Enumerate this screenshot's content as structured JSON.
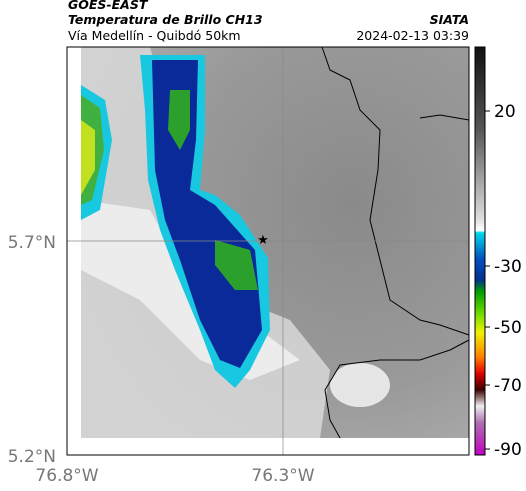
{
  "header": {
    "title": "GOES-EAST",
    "subtitle": "Temperatura de Brillo CH13",
    "brand": "SIATA",
    "route": "Vía Medellín - Quibdó 50km",
    "timestamp": "2024-02-13 03:39"
  },
  "map": {
    "lat_labels": [
      "5.7°N",
      "5.2°N"
    ],
    "lon_labels": [
      "76.8°W",
      "76.3°W"
    ]
  },
  "colorbar": {
    "ticks": [
      20,
      -30,
      -50,
      -70,
      -90
    ]
  }
}
